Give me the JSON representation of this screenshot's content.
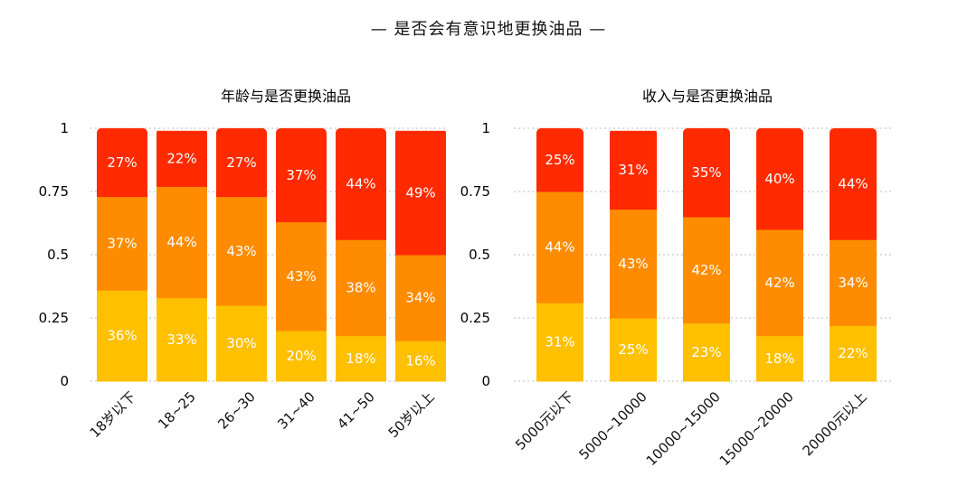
{
  "title": "— 是否会有意识地更换油品 —",
  "colors": {
    "bottom": "#FFC000",
    "middle": "#FF8C00",
    "top": "#FF2A00",
    "grid": "#bfbfbf"
  },
  "chart_data": [
    {
      "type": "bar",
      "stacked": true,
      "title": "年龄与是否更换油品",
      "categories": [
        "18岁以下",
        "18~25",
        "26~30",
        "31~40",
        "41~50",
        "50岁以上"
      ],
      "series": [
        {
          "values": [
            0.36,
            0.33,
            0.3,
            0.2,
            0.18,
            0.16
          ],
          "labels": [
            "36%",
            "33%",
            "30%",
            "20%",
            "18%",
            "16%"
          ]
        },
        {
          "values": [
            0.37,
            0.44,
            0.43,
            0.43,
            0.38,
            0.34
          ],
          "labels": [
            "37%",
            "44%",
            "43%",
            "43%",
            "38%",
            "34%"
          ]
        },
        {
          "values": [
            0.27,
            0.22,
            0.27,
            0.37,
            0.44,
            0.49
          ],
          "labels": [
            "27%",
            "22%",
            "27%",
            "37%",
            "44%",
            "49%"
          ]
        }
      ],
      "ylim": [
        0,
        1
      ],
      "yticks": [
        "0",
        "0.25",
        "0.5",
        "0.75",
        "1"
      ],
      "grid": true
    },
    {
      "type": "bar",
      "stacked": true,
      "title": "收入与是否更换油品",
      "categories": [
        "5000元以下",
        "5000~10000",
        "10000~15000",
        "15000~20000",
        "20000元以上"
      ],
      "series": [
        {
          "values": [
            0.31,
            0.25,
            0.23,
            0.18,
            0.22
          ],
          "labels": [
            "31%",
            "25%",
            "23%",
            "18%",
            "22%"
          ]
        },
        {
          "values": [
            0.44,
            0.43,
            0.42,
            0.42,
            0.34
          ],
          "labels": [
            "44%",
            "43%",
            "42%",
            "42%",
            "34%"
          ]
        },
        {
          "values": [
            0.25,
            0.31,
            0.35,
            0.4,
            0.44
          ],
          "labels": [
            "25%",
            "31%",
            "35%",
            "40%",
            "44%"
          ]
        }
      ],
      "ylim": [
        0,
        1
      ],
      "yticks": [
        "0",
        "0.25",
        "0.5",
        "0.75",
        "1"
      ],
      "grid": true
    }
  ]
}
